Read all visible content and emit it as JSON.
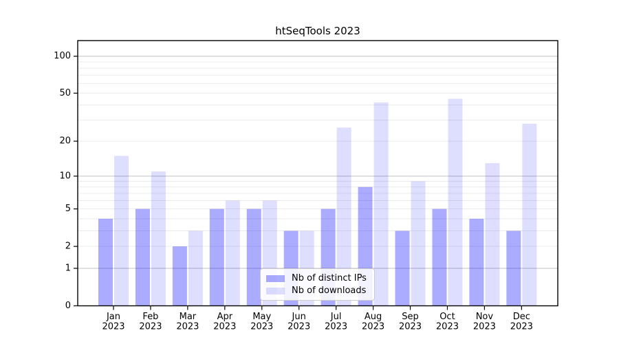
{
  "title": "htSeqTools 2023",
  "legend": {
    "items": [
      {
        "label": "Nb of distinct IPs"
      },
      {
        "label": "Nb of downloads"
      }
    ]
  },
  "y_axis": {
    "tick_labels": [
      "100",
      "50",
      "20",
      "10",
      "5",
      "2",
      "1",
      "0"
    ]
  },
  "x_axis": {
    "year": "2023",
    "months": [
      "Jan",
      "Feb",
      "Mar",
      "Apr",
      "May",
      "Jun",
      "Jul",
      "Aug",
      "Sep",
      "Oct",
      "Nov",
      "Dec"
    ]
  },
  "colors": {
    "ips_bar": "rgba(0,0,255,0.33)",
    "downloads_bar": "rgba(0,0,255,0.13)",
    "grid_major": "#c0c0c0",
    "grid_minor": "#ebebeb",
    "axis": "#000000",
    "legend_border": "#cccccc"
  },
  "chart_data": {
    "type": "bar",
    "title": "htSeqTools 2023",
    "categories": [
      "Jan 2023",
      "Feb 2023",
      "Mar 2023",
      "Apr 2023",
      "May 2023",
      "Jun 2023",
      "Jul 2023",
      "Aug 2023",
      "Sep 2023",
      "Oct 2023",
      "Nov 2023",
      "Dec 2023"
    ],
    "series": [
      {
        "name": "Nb of distinct IPs",
        "values": [
          4,
          5,
          2,
          5,
          5,
          3,
          5,
          8,
          3,
          5,
          4,
          3
        ]
      },
      {
        "name": "Nb of downloads",
        "values": [
          15,
          11,
          3,
          6,
          6,
          3,
          26,
          42,
          9,
          45,
          13,
          28
        ]
      }
    ],
    "xlabel": "",
    "ylabel": "",
    "yscale": "log10(1+y)",
    "ylim": [
      0,
      135
    ],
    "yticks": [
      0,
      1,
      2,
      5,
      10,
      20,
      50,
      100
    ],
    "grid": "horizontal, log minor + decade major",
    "legend_position": "lower center inside plot"
  }
}
